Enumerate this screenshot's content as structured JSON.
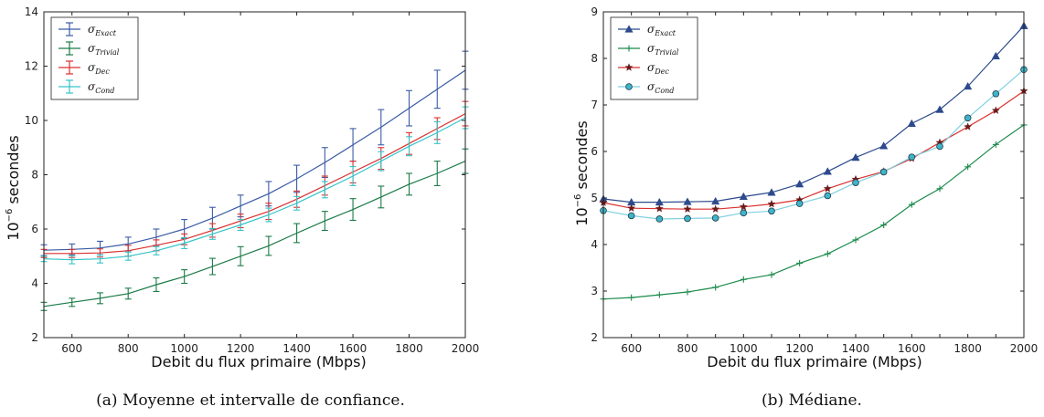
{
  "chart_data": [
    {
      "type": "line",
      "caption": "(a) Moyenne et intervalle de confiance.",
      "xlabel": "Debit du flux primaire (Mbps)",
      "ylabel_base": "10",
      "ylabel_exp": "−6",
      "ylabel_unit": " secondes",
      "xlim": [
        500,
        2000
      ],
      "ylim": [
        2,
        14
      ],
      "xticks": [
        600,
        800,
        1000,
        1200,
        1400,
        1600,
        1800,
        2000
      ],
      "yticks": [
        2,
        4,
        6,
        8,
        10,
        12,
        14
      ],
      "legend_position": "top-left",
      "error_bars": true,
      "x": [
        500,
        600,
        700,
        800,
        900,
        1000,
        1100,
        1200,
        1300,
        1400,
        1500,
        1600,
        1700,
        1800,
        1900,
        2000
      ],
      "series": [
        {
          "name": "σ",
          "sub": "Exact",
          "color": "#3a5ba6",
          "values": [
            5.22,
            5.25,
            5.3,
            5.45,
            5.7,
            6.0,
            6.4,
            6.85,
            7.3,
            7.85,
            8.45,
            9.1,
            9.75,
            10.45,
            11.15,
            11.85
          ],
          "err": [
            0.2,
            0.2,
            0.25,
            0.25,
            0.3,
            0.35,
            0.4,
            0.4,
            0.45,
            0.5,
            0.55,
            0.6,
            0.65,
            0.65,
            0.7,
            0.7
          ]
        },
        {
          "name": "σ",
          "sub": "Trivial",
          "color": "#1b7a47",
          "values": [
            3.15,
            3.3,
            3.45,
            3.62,
            3.95,
            4.25,
            4.62,
            5.0,
            5.38,
            5.85,
            6.3,
            6.72,
            7.18,
            7.65,
            8.05,
            8.5
          ],
          "err": [
            0.15,
            0.15,
            0.2,
            0.2,
            0.25,
            0.25,
            0.3,
            0.35,
            0.35,
            0.35,
            0.35,
            0.4,
            0.4,
            0.4,
            0.45,
            0.45
          ]
        },
        {
          "name": "σ",
          "sub": "Dec",
          "color": "#d9302f",
          "values": [
            5.1,
            5.1,
            5.12,
            5.2,
            5.4,
            5.62,
            5.95,
            6.3,
            6.65,
            7.1,
            7.6,
            8.1,
            8.6,
            9.15,
            9.7,
            10.25
          ],
          "err": [
            0.15,
            0.15,
            0.15,
            0.2,
            0.2,
            0.2,
            0.25,
            0.25,
            0.3,
            0.3,
            0.35,
            0.4,
            0.4,
            0.4,
            0.4,
            0.45
          ]
        },
        {
          "name": "σ",
          "sub": "Cond",
          "color": "#35c3c8",
          "values": [
            4.9,
            4.87,
            4.9,
            5.0,
            5.2,
            5.48,
            5.82,
            6.15,
            6.52,
            6.95,
            7.45,
            7.95,
            8.5,
            9.05,
            9.55,
            10.1
          ],
          "err": [
            0.1,
            0.15,
            0.15,
            0.15,
            0.15,
            0.2,
            0.2,
            0.2,
            0.25,
            0.25,
            0.3,
            0.35,
            0.35,
            0.35,
            0.4,
            0.4
          ]
        }
      ]
    },
    {
      "type": "line",
      "caption": "(b) Médiane.",
      "xlabel": "Debit du flux primaire (Mbps)",
      "ylabel_base": "10",
      "ylabel_exp": "−6",
      "ylabel_unit": " secondes",
      "xlim": [
        500,
        2000
      ],
      "ylim": [
        2,
        9
      ],
      "xticks": [
        500,
        600,
        700,
        800,
        900,
        1000,
        1100,
        1200,
        1300,
        1400,
        1500,
        1600,
        1700,
        1800,
        1900,
        2000
      ],
      "xtick_labels": [
        600,
        800,
        1000,
        1200,
        1400,
        1600,
        1800,
        2000
      ],
      "yticks": [
        2,
        3,
        4,
        5,
        6,
        7,
        8,
        9
      ],
      "legend_position": "top-left",
      "x": [
        500,
        600,
        700,
        800,
        900,
        1000,
        1100,
        1200,
        1300,
        1400,
        1500,
        1600,
        1700,
        1800,
        1900,
        2000
      ],
      "series": [
        {
          "name": "σ",
          "sub": "Exact",
          "color": "#2c4a8c",
          "fill": "#2c4a8c",
          "marker": "triangle",
          "values": [
            4.98,
            4.91,
            4.91,
            4.92,
            4.93,
            5.03,
            5.12,
            5.3,
            5.57,
            5.87,
            6.12,
            6.6,
            6.9,
            7.4,
            8.05,
            8.7
          ]
        },
        {
          "name": "σ",
          "sub": "Trivial",
          "color": "#1a8a4a",
          "fill": "#1a8a4a",
          "marker": "plus",
          "values": [
            2.83,
            2.86,
            2.92,
            2.98,
            3.08,
            3.25,
            3.35,
            3.6,
            3.8,
            4.1,
            4.42,
            4.86,
            5.2,
            5.67,
            6.15,
            6.57
          ]
        },
        {
          "name": "σ",
          "sub": "Dec",
          "color": "#d9302f",
          "fill": "#6b1a1a",
          "marker": "star",
          "values": [
            4.9,
            4.78,
            4.77,
            4.76,
            4.76,
            4.81,
            4.87,
            4.96,
            5.2,
            5.4,
            5.57,
            5.85,
            6.19,
            6.53,
            6.88,
            7.3
          ]
        },
        {
          "name": "σ",
          "sub": "Cond",
          "color": "#7fd0e0",
          "fill": "#3fb4c8",
          "marker": "circle",
          "values": [
            4.73,
            4.62,
            4.55,
            4.56,
            4.57,
            4.68,
            4.72,
            4.88,
            5.05,
            5.33,
            5.56,
            5.88,
            6.11,
            6.72,
            7.24,
            7.76
          ]
        }
      ]
    }
  ]
}
